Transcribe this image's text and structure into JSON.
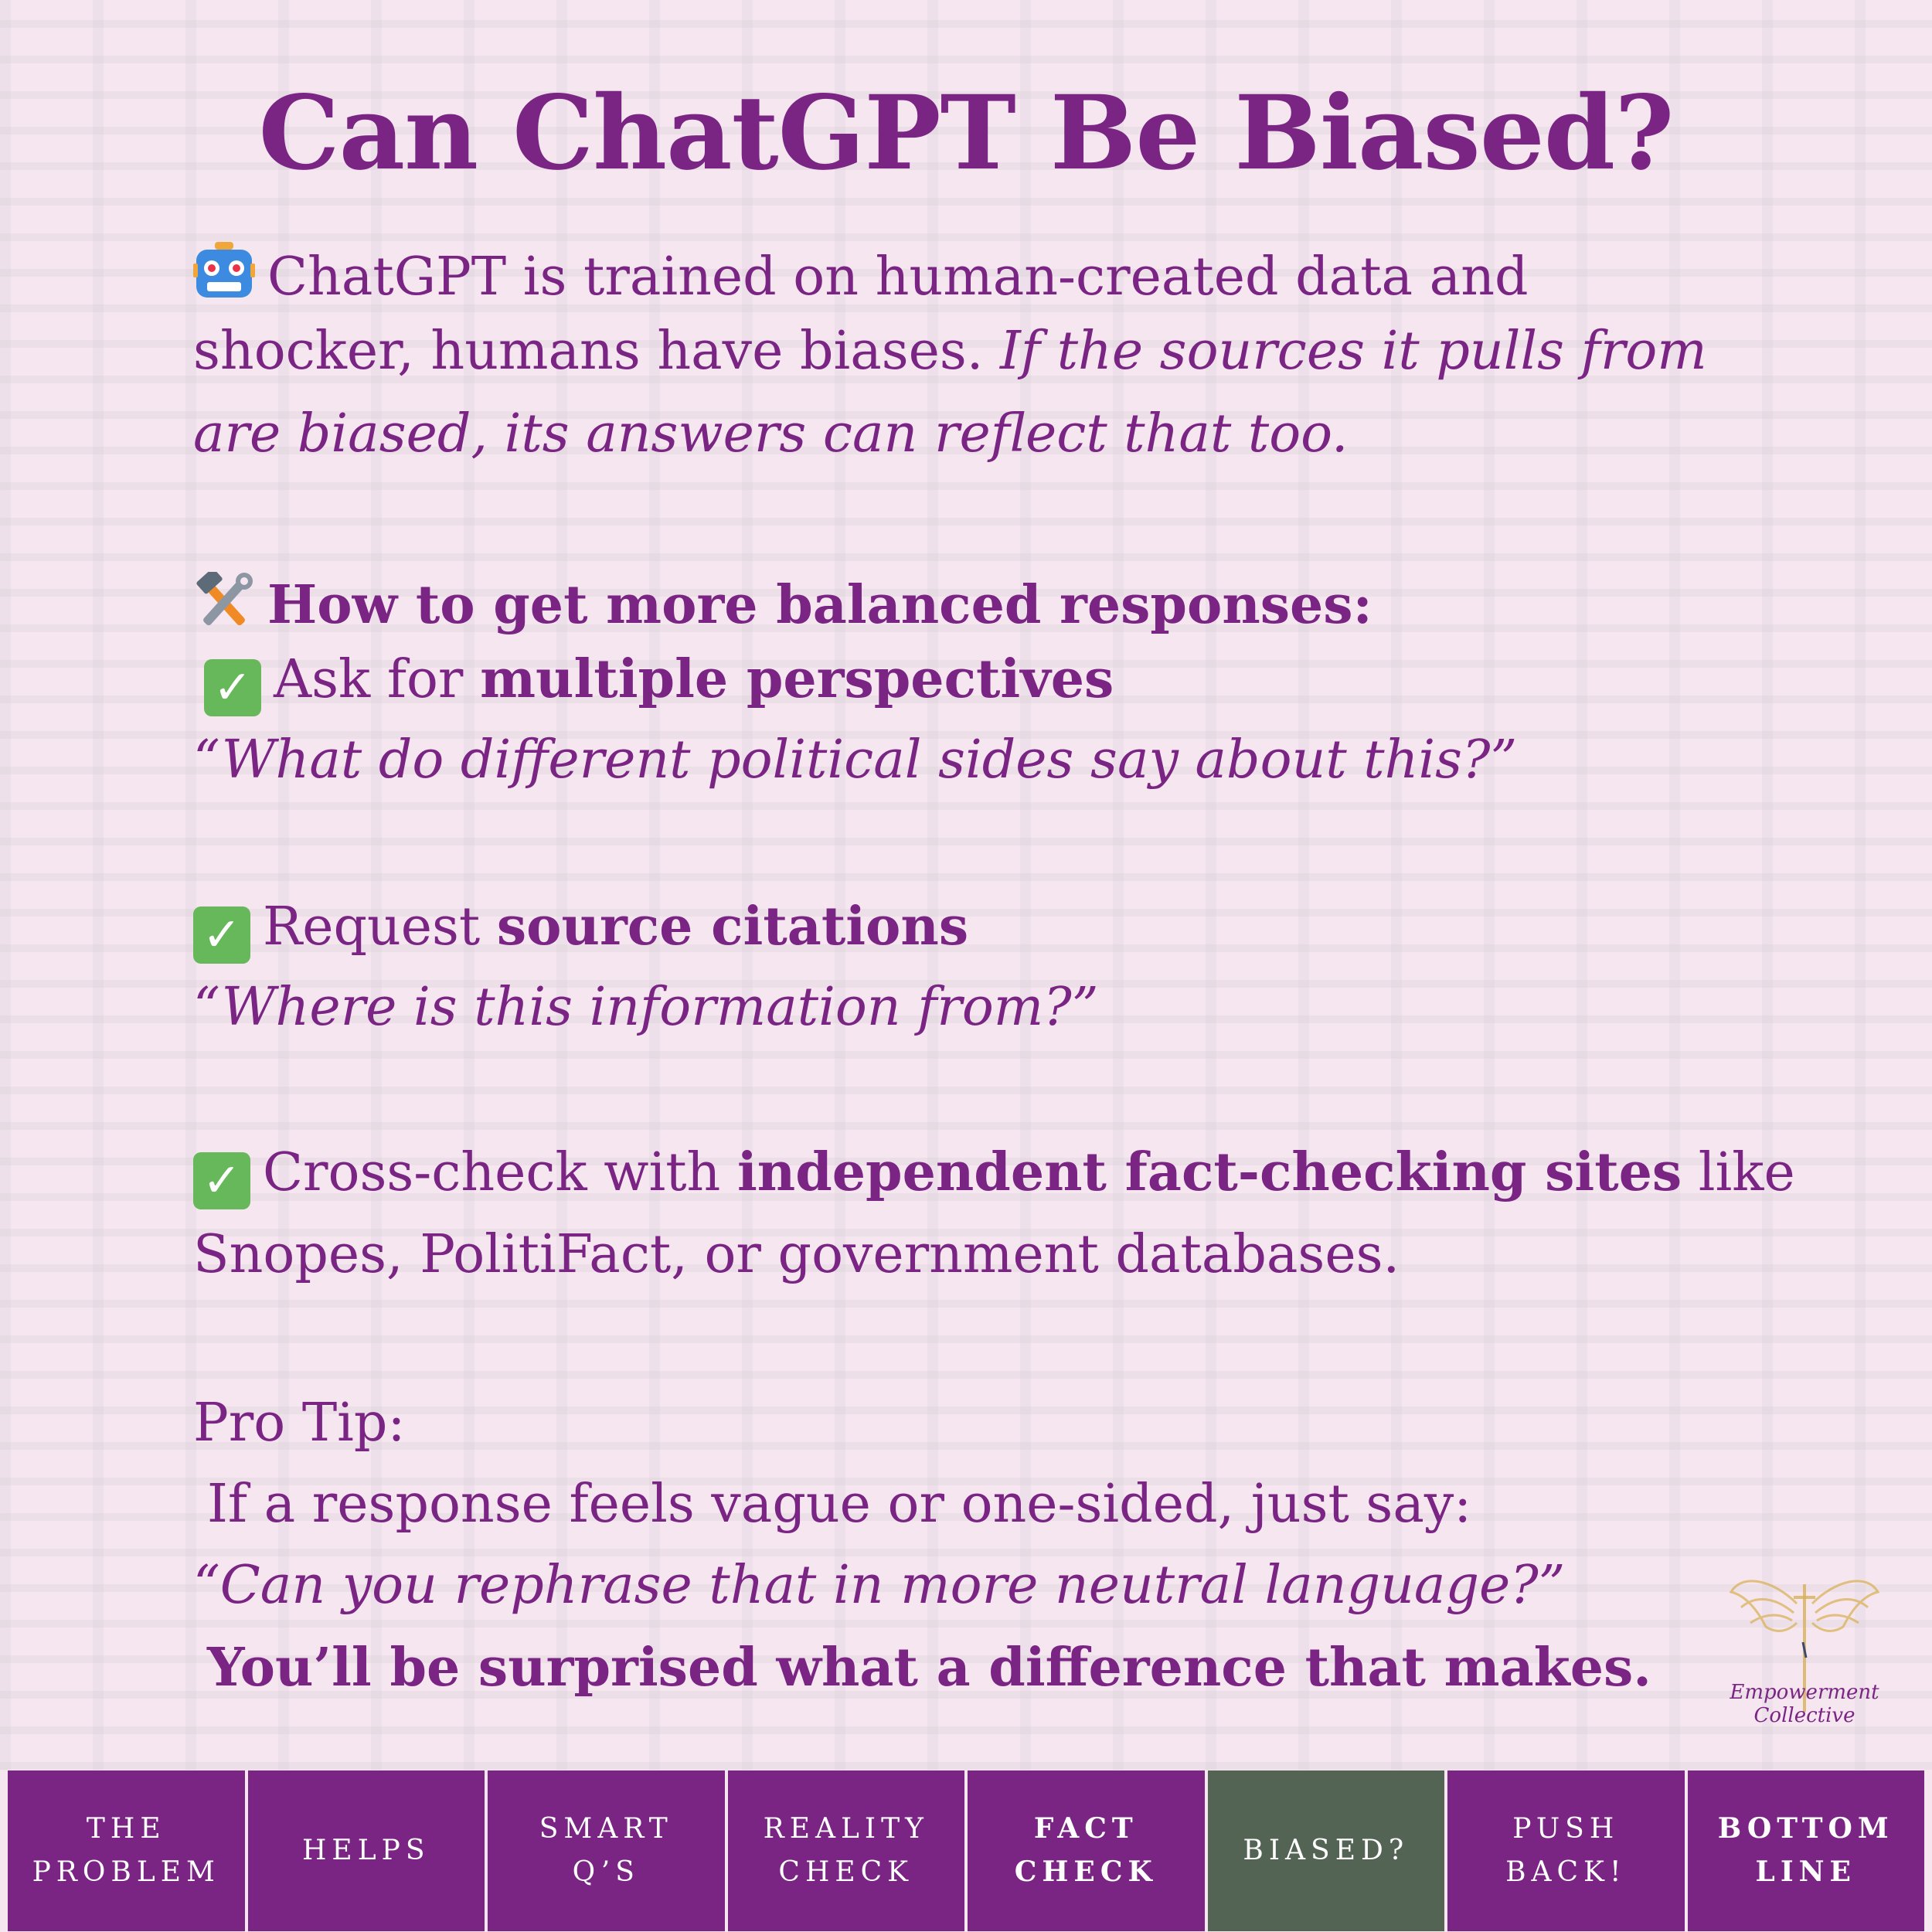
{
  "title": "Can ChatGPT Be Biased?",
  "intro": {
    "line1": "ChatGPT is trained on human-created data and",
    "line2_plain": "shocker, humans have biases. ",
    "line2_italic": "If the sources it pulls from",
    "line3_italic": "are biased, its answers can reflect that too."
  },
  "how_heading": "How to get more balanced responses:",
  "tips": [
    {
      "lead": "Ask for ",
      "bold": "multiple perspectives",
      "quote": "“What do different political sides say about this?”"
    },
    {
      "lead": "Request ",
      "bold": "source citations",
      "quote": "“Where is this information from?”"
    },
    {
      "lead": "Cross-check with ",
      "bold": "independent fact-checking sites",
      "tail": " like",
      "line2": "Snopes, PolitiFact, or government databases."
    }
  ],
  "pro_tip": {
    "label": "Pro Tip:",
    "line1": "If a response feels vague or one-sided, just say:",
    "quote": "“Can you rephrase that in more neutral language?”",
    "closing": "You’ll be surprised what a difference that makes."
  },
  "logo": {
    "text": "Empowerment Collective",
    "color": "#d9b25a"
  },
  "nav": {
    "tabs": [
      {
        "label": "THE\nPROBLEM",
        "bold": false,
        "active": false
      },
      {
        "label": "HELPS",
        "bold": false,
        "active": false
      },
      {
        "label": "SMART\nQ’S",
        "bold": false,
        "active": false
      },
      {
        "label": "REALITY\nCHECK",
        "bold": false,
        "active": false
      },
      {
        "label": "FACT\nCHECK",
        "bold": true,
        "active": false
      },
      {
        "label": "BIASED?",
        "bold": false,
        "active": true
      },
      {
        "label": "PUSH\nBACK!",
        "bold": false,
        "active": false
      },
      {
        "label": "BOTTOM\nLINE",
        "bold": true,
        "active": false
      }
    ]
  },
  "colors": {
    "text": "#7a2483",
    "background": "#f5e6f0",
    "tab": "#7a2483",
    "tab_active": "#546454",
    "check": "#66b85a"
  },
  "icons": {
    "intro": "robot-icon",
    "heading": "hammer-wrench-icon",
    "tips": "checkmark-icon"
  }
}
